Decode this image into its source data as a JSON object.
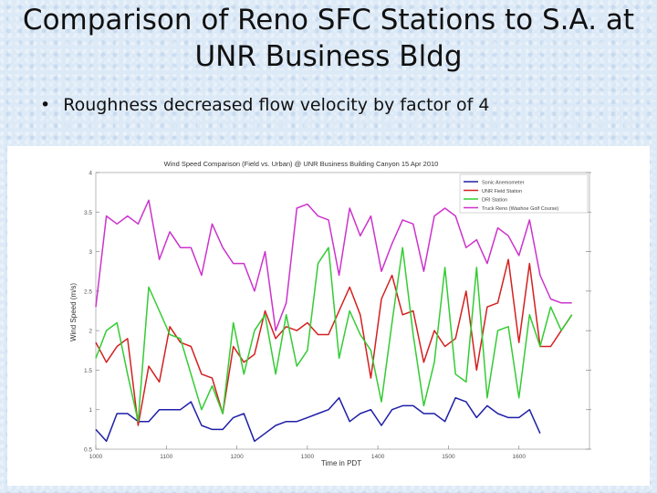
{
  "slide": {
    "title_line1": "Comparison of Reno SFC Stations to S.A. at",
    "title_line2": "UNR Business Bldg",
    "bullet": "Roughness decreased flow velocity by factor of 4"
  },
  "chart_data": {
    "type": "line",
    "title": "Wind Speed Comparison (Field vs. Urban) @ UNR Business Building Canyon 15 Apr 2010",
    "xlabel": "Time in PDT",
    "ylabel": "Wind Speed (m/s)",
    "xlim": [
      1000,
      1700
    ],
    "ylim": [
      0.5,
      4
    ],
    "x_ticks": [
      1000,
      1100,
      1200,
      1300,
      1400,
      1500,
      1600
    ],
    "x_tick_labels": [
      "1000",
      "1100",
      "1200",
      "1300",
      "1400",
      "1500",
      "1600"
    ],
    "y_ticks": [
      0.5,
      1,
      1.5,
      2,
      2.5,
      3,
      3.5,
      4
    ],
    "y_tick_labels": [
      "0.5",
      "1",
      "1.5",
      "2",
      "2.5",
      "3",
      "3.5",
      "4"
    ],
    "legend_position": "top-right",
    "grid": false,
    "series": [
      {
        "name": "Sonic Anemometer",
        "color": "#1f1fa8",
        "x": [
          1000,
          1015,
          1030,
          1045,
          1060,
          1075,
          1090,
          1105,
          1120,
          1135,
          1150,
          1165,
          1180,
          1195,
          1210,
          1225,
          1240,
          1255,
          1270,
          1285,
          1300,
          1315,
          1330,
          1345,
          1360,
          1375,
          1390,
          1405,
          1420,
          1435,
          1450,
          1465,
          1480,
          1495,
          1510,
          1525,
          1540,
          1555,
          1570,
          1585,
          1600,
          1615,
          1630
        ],
        "y": [
          0.75,
          0.6,
          0.95,
          0.95,
          0.85,
          0.85,
          1.0,
          1.0,
          1.0,
          1.1,
          0.8,
          0.75,
          0.75,
          0.9,
          0.95,
          0.6,
          0.7,
          0.8,
          0.85,
          0.85,
          0.9,
          0.95,
          1.0,
          1.15,
          0.85,
          0.95,
          1.0,
          0.8,
          1.0,
          1.05,
          1.05,
          0.95,
          0.95,
          0.85,
          1.15,
          1.1,
          0.9,
          1.05,
          0.95,
          0.9,
          0.9,
          1.0,
          0.7
        ]
      },
      {
        "name": "UNR Field Station",
        "color": "#d42020",
        "x": [
          1000,
          1015,
          1030,
          1045,
          1060,
          1075,
          1090,
          1105,
          1120,
          1135,
          1150,
          1165,
          1180,
          1195,
          1210,
          1225,
          1240,
          1255,
          1270,
          1285,
          1300,
          1315,
          1330,
          1345,
          1360,
          1375,
          1390,
          1405,
          1420,
          1435,
          1450,
          1465,
          1480,
          1495,
          1510,
          1525,
          1540,
          1555,
          1570,
          1585,
          1600,
          1615,
          1630,
          1645,
          1660,
          1675
        ],
        "y": [
          1.85,
          1.6,
          1.8,
          1.9,
          0.8,
          1.55,
          1.35,
          2.05,
          1.85,
          1.8,
          1.45,
          1.4,
          0.95,
          1.8,
          1.6,
          1.7,
          2.25,
          1.9,
          2.05,
          2.0,
          2.1,
          1.95,
          1.95,
          2.25,
          2.55,
          2.2,
          1.4,
          2.4,
          2.7,
          2.2,
          2.25,
          1.6,
          2.0,
          1.8,
          1.9,
          2.5,
          1.5,
          2.3,
          2.35,
          2.9,
          1.85,
          2.85,
          1.8,
          1.8,
          2.0,
          2.2
        ]
      },
      {
        "name": "DRI Station",
        "color": "#33cc33",
        "x": [
          1000,
          1015,
          1030,
          1045,
          1060,
          1075,
          1090,
          1105,
          1120,
          1135,
          1150,
          1165,
          1180,
          1195,
          1210,
          1225,
          1240,
          1255,
          1270,
          1285,
          1300,
          1315,
          1330,
          1345,
          1360,
          1375,
          1390,
          1405,
          1420,
          1435,
          1450,
          1465,
          1480,
          1495,
          1510,
          1525,
          1540,
          1555,
          1570,
          1585,
          1600,
          1615,
          1630,
          1645,
          1660,
          1675
        ],
        "y": [
          1.65,
          2.0,
          2.1,
          1.45,
          0.85,
          2.55,
          2.25,
          1.95,
          1.9,
          1.45,
          1.0,
          1.3,
          0.95,
          2.1,
          1.45,
          2.0,
          2.2,
          1.45,
          2.2,
          1.55,
          1.75,
          2.85,
          3.05,
          1.65,
          2.25,
          1.95,
          1.75,
          1.1,
          2.1,
          3.05,
          1.95,
          1.05,
          1.6,
          2.8,
          1.45,
          1.35,
          2.8,
          1.15,
          2.0,
          2.05,
          1.15,
          2.2,
          1.8,
          2.3,
          2.0,
          2.2
        ]
      },
      {
        "name": "Truck Reno (Washoe Golf Course)",
        "color": "#cc33cc",
        "x": [
          1000,
          1015,
          1030,
          1045,
          1060,
          1075,
          1090,
          1105,
          1120,
          1135,
          1150,
          1165,
          1180,
          1195,
          1210,
          1225,
          1240,
          1255,
          1270,
          1285,
          1300,
          1315,
          1330,
          1345,
          1360,
          1375,
          1390,
          1405,
          1420,
          1435,
          1450,
          1465,
          1480,
          1495,
          1510,
          1525,
          1540,
          1555,
          1570,
          1585,
          1600,
          1615,
          1630,
          1645,
          1660,
          1675
        ],
        "y": [
          2.3,
          3.45,
          3.35,
          3.45,
          3.35,
          3.65,
          2.9,
          3.25,
          3.05,
          3.05,
          2.7,
          3.35,
          3.05,
          2.85,
          2.85,
          2.5,
          3.0,
          2.0,
          2.35,
          3.55,
          3.6,
          3.45,
          3.4,
          2.7,
          3.55,
          3.2,
          3.45,
          2.75,
          3.1,
          3.4,
          3.35,
          2.75,
          3.45,
          3.55,
          3.45,
          3.05,
          3.15,
          2.85,
          3.3,
          3.2,
          2.95,
          3.4,
          2.7,
          2.4,
          2.35,
          2.35
        ]
      }
    ]
  }
}
